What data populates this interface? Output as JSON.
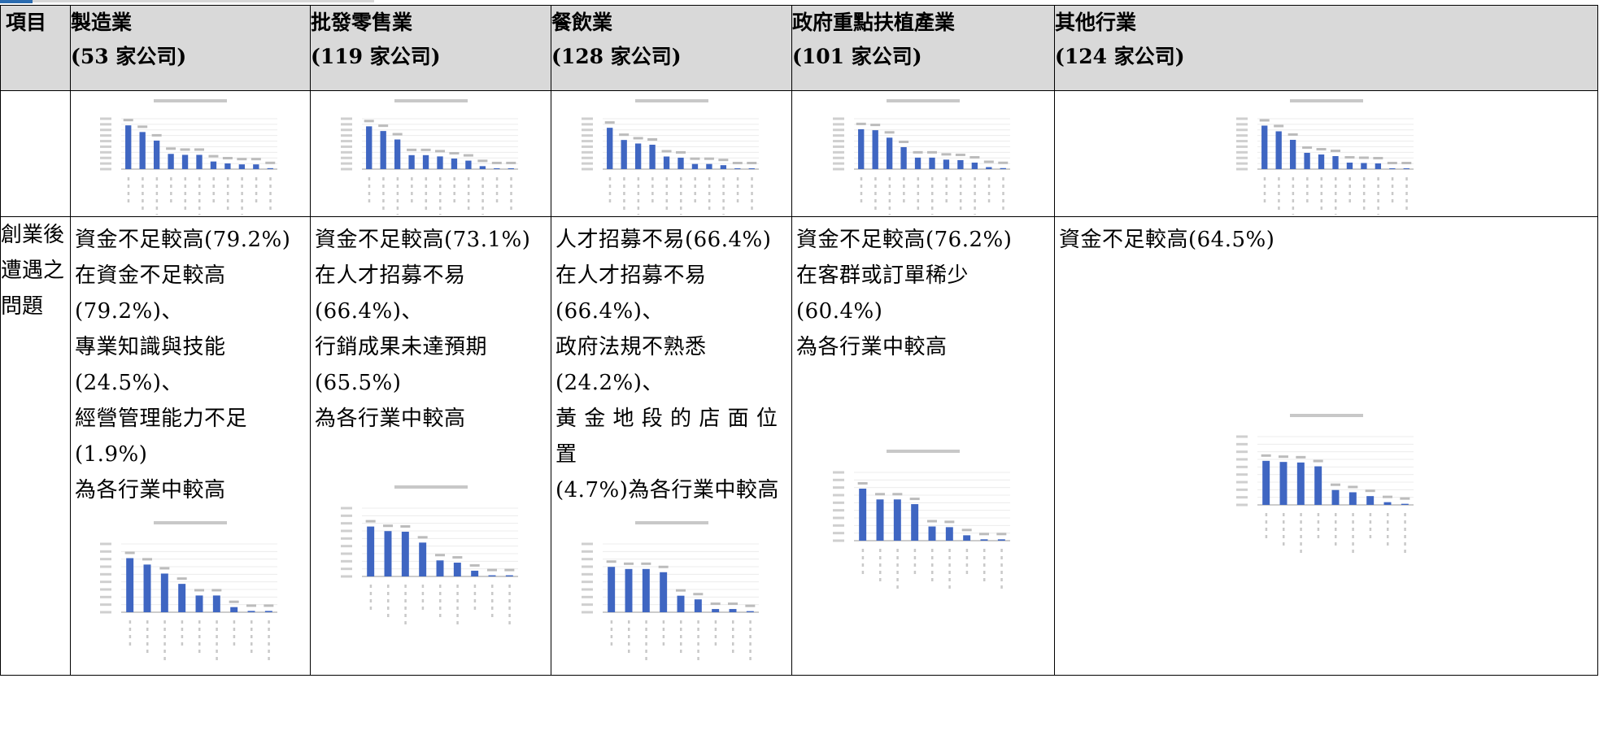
{
  "header": {
    "item_label": "項目",
    "columns": [
      {
        "name": "製造業",
        "count": "(53 家公司)"
      },
      {
        "name": "批發零售業",
        "count": "(119 家公司)"
      },
      {
        "name": "餐飲業",
        "count": "(128 家公司)"
      },
      {
        "name": "政府重點扶植產業",
        "count": "(101 家公司)"
      },
      {
        "name": "其他行業",
        "count": "(124 家公司)"
      }
    ]
  },
  "row2": {
    "label": "創業後遭遇之問題",
    "findings": [
      [
        "資金不足較高(79.2%)",
        "在資金不足較高(79.2%)、",
        "專業知識與技能(24.5%)、",
        "經營管理能力不足(1.9%)",
        "為各行業中較高"
      ],
      [
        "資金不足較高(73.1%)",
        "在人才招募不易(66.4%)、",
        "行銷成果未達預期(65.5%)",
        "為各行業中較高"
      ],
      [
        "人才招募不易(66.4%)",
        "在人才招募不易(66.4%)、",
        "政府法規不熟悉(24.2%)、",
        "黃 金 地 段 的 店 面 位 置",
        "(4.7%)為各行業中較高"
      ],
      [
        "資金不足較高(76.2%)",
        "在客群或訂單稀少(60.4%)",
        "為各行業中較高"
      ],
      [
        "資金不足較高(64.5%)"
      ]
    ]
  },
  "chart_data": [
    {
      "type": "bar",
      "industry": "製造業",
      "values": [
        86.8,
        73.6,
        56.6,
        30.2,
        28.3,
        28.3,
        15.1,
        11.3,
        9.4,
        9.4,
        1.9
      ]
    },
    {
      "type": "bar",
      "industry": "批發零售業",
      "values": [
        84.9,
        75.6,
        58.8,
        27.7,
        27.7,
        25.2,
        21.0,
        16.8,
        5.9,
        1.7,
        1.7
      ]
    },
    {
      "type": "bar",
      "industry": "餐飲業",
      "values": [
        82.0,
        57.8,
        50.8,
        48.4,
        25.0,
        22.7,
        10.2,
        10.2,
        7.8,
        1.6,
        1.6
      ]
    },
    {
      "type": "bar",
      "industry": "政府重點扶植產業",
      "values": [
        79.2,
        77.2,
        62.4,
        43.6,
        22.8,
        22.8,
        18.8,
        17.8,
        12.9,
        4.0,
        2.0
      ]
    },
    {
      "type": "bar",
      "industry": "其他行業",
      "values": [
        86.3,
        75.0,
        58.1,
        32.3,
        29.0,
        25.8,
        12.9,
        12.1,
        11.3,
        1.6,
        1.6
      ]
    },
    {
      "type": "bar",
      "industry": "製造業",
      "values": [
        79.2,
        69.8,
        56.6,
        41.5,
        24.5,
        24.5,
        7.5,
        1.9,
        1.9
      ]
    },
    {
      "type": "bar",
      "industry": "批發零售業",
      "values": [
        73.1,
        66.4,
        65.5,
        49.6,
        23.5,
        20.2,
        8.4,
        1.7,
        1.7
      ]
    },
    {
      "type": "bar",
      "industry": "餐飲業",
      "values": [
        66.4,
        63.3,
        63.3,
        58.6,
        24.2,
        18.8,
        4.7,
        4.7,
        1.6
      ]
    },
    {
      "type": "bar",
      "industry": "政府重點扶植產業",
      "values": [
        76.2,
        60.4,
        60.4,
        53.5,
        20.8,
        19.8,
        7.9,
        2.0,
        2.0
      ]
    },
    {
      "type": "bar",
      "industry": "其他行業",
      "values": [
        64.5,
        62.9,
        62.1,
        56.5,
        21.8,
        18.5,
        12.9,
        4.0,
        1.6
      ]
    }
  ]
}
